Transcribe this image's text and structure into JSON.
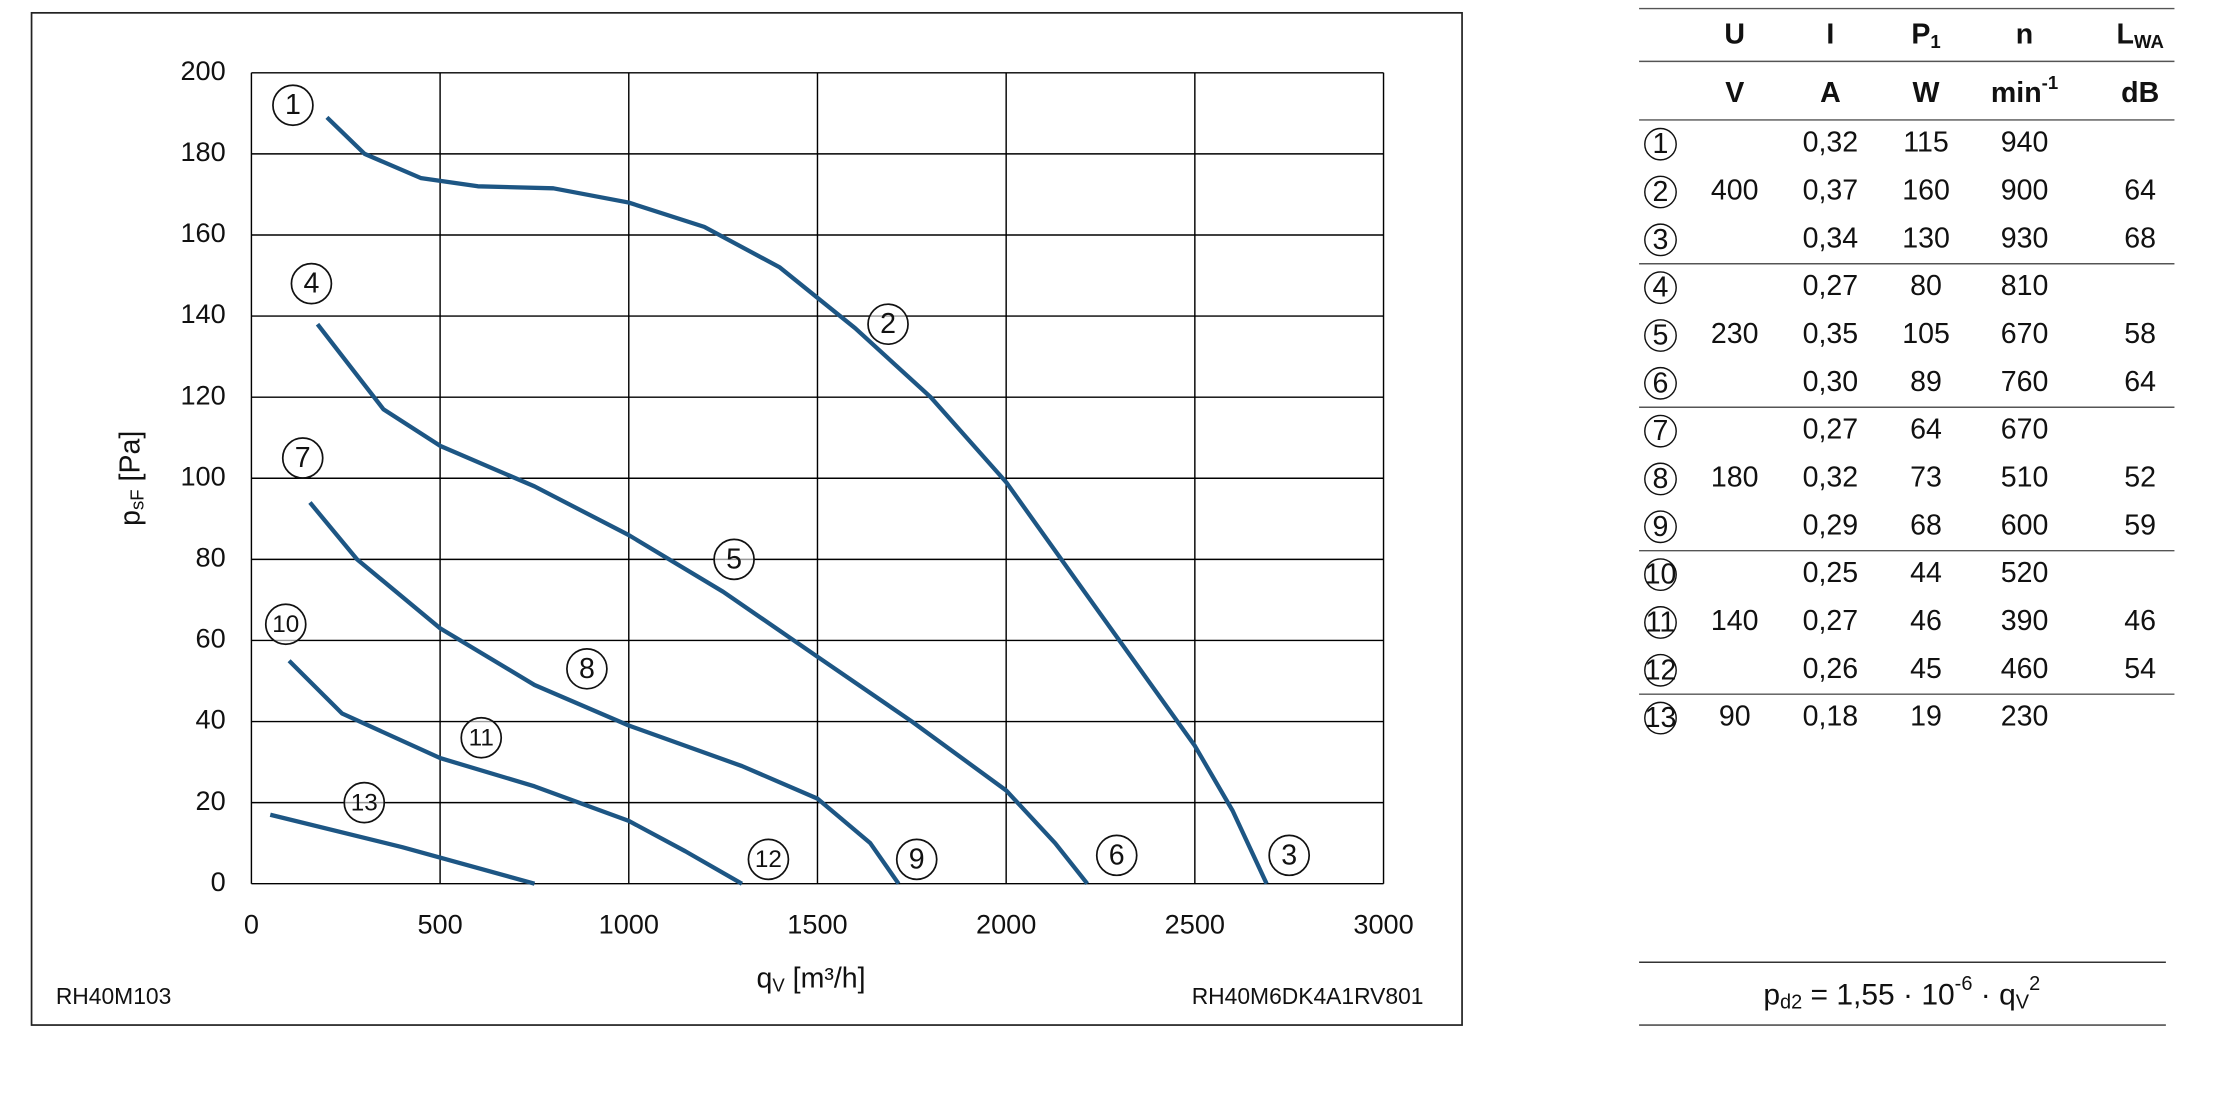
{
  "chart_data": {
    "type": "line",
    "xlabel": [
      "q",
      "V",
      " [m³/h]"
    ],
    "ylabel": [
      "p",
      "sF",
      " [Pa]"
    ],
    "xlim": [
      0,
      3000
    ],
    "ylim": [
      0,
      200
    ],
    "xticks": [
      0,
      500,
      1000,
      1500,
      2000,
      2500,
      3000
    ],
    "yticks": [
      0,
      20,
      40,
      60,
      80,
      100,
      120,
      140,
      160,
      180,
      200
    ],
    "grid": true,
    "series": [
      {
        "color": "#1d5684",
        "x": [
          200,
          300,
          450,
          600,
          800,
          1000,
          1200,
          1400,
          1600,
          1800,
          2000,
          2200,
          2400,
          2500,
          2600,
          2690
        ],
        "values": [
          189,
          180,
          174,
          172,
          171.5,
          168,
          162,
          152,
          137,
          120,
          99,
          73,
          47,
          34,
          18,
          0
        ]
      },
      {
        "color": "#1d5684",
        "x": [
          175,
          350,
          500,
          750,
          1000,
          1250,
          1500,
          1750,
          2000,
          2130,
          2215
        ],
        "values": [
          138,
          117,
          108,
          98,
          86,
          72,
          56,
          40,
          23,
          10,
          0
        ]
      },
      {
        "color": "#1d5684",
        "x": [
          155,
          280,
          500,
          750,
          1000,
          1300,
          1500,
          1640,
          1715
        ],
        "values": [
          94,
          80,
          63,
          49,
          39,
          29,
          21,
          10,
          0
        ]
      },
      {
        "color": "#1d5684",
        "x": [
          100,
          240,
          500,
          750,
          1000,
          1150,
          1300
        ],
        "values": [
          55,
          42,
          31,
          24,
          15.5,
          8,
          0
        ]
      },
      {
        "color": "#1d5684",
        "x": [
          50,
          400,
          750
        ],
        "values": [
          17,
          9,
          0
        ]
      }
    ],
    "annotations": [
      {
        "text": "1",
        "x": 110,
        "y": 192
      },
      {
        "text": "2",
        "x": 1687,
        "y": 138
      },
      {
        "text": "3",
        "x": 2750,
        "y": 7
      },
      {
        "text": "4",
        "x": 159,
        "y": 148
      },
      {
        "text": "5",
        "x": 1279,
        "y": 80
      },
      {
        "text": "6",
        "x": 2293,
        "y": 7
      },
      {
        "text": "7",
        "x": 136,
        "y": 105
      },
      {
        "text": "8",
        "x": 889,
        "y": 53
      },
      {
        "text": "9",
        "x": 1763,
        "y": 6
      },
      {
        "text": "10",
        "x": 91,
        "y": 64
      },
      {
        "text": "11",
        "x": 609,
        "y": 36
      },
      {
        "text": "12",
        "x": 1370,
        "y": 6
      },
      {
        "text": "13",
        "x": 299,
        "y": 20
      }
    ],
    "footer_left": "RH40M103",
    "footer_right": "RH40M6DK4A1RV801"
  },
  "table": {
    "header": [
      [
        "U"
      ],
      [
        "I"
      ],
      [
        "P",
        "1"
      ],
      [
        "n"
      ],
      [
        "L",
        "WA"
      ]
    ],
    "units": [
      [
        "V"
      ],
      [
        "A"
      ],
      [
        "W"
      ],
      [
        "min",
        "-1"
      ],
      [
        "dB"
      ]
    ],
    "groups": [
      {
        "U": "400",
        "rows": [
          {
            "id": "1",
            "I": "0,32",
            "P1": "115",
            "n": "940"
          },
          {
            "id": "2",
            "I": "0,37",
            "P1": "160",
            "n": "900",
            "LWA": "64"
          },
          {
            "id": "3",
            "I": "0,34",
            "P1": "130",
            "n": "930",
            "LWA": "68"
          }
        ]
      },
      {
        "U": "230",
        "rows": [
          {
            "id": "4",
            "I": "0,27",
            "P1": "80",
            "n": "810"
          },
          {
            "id": "5",
            "I": "0,35",
            "P1": "105",
            "n": "670",
            "LWA": "58"
          },
          {
            "id": "6",
            "I": "0,30",
            "P1": "89",
            "n": "760",
            "LWA": "64"
          }
        ]
      },
      {
        "U": "180",
        "rows": [
          {
            "id": "7",
            "I": "0,27",
            "P1": "64",
            "n": "670"
          },
          {
            "id": "8",
            "I": "0,32",
            "P1": "73",
            "n": "510",
            "LWA": "52"
          },
          {
            "id": "9",
            "I": "0,29",
            "P1": "68",
            "n": "600",
            "LWA": "59"
          }
        ]
      },
      {
        "U": "140",
        "rows": [
          {
            "id": "10",
            "I": "0,25",
            "P1": "44",
            "n": "520"
          },
          {
            "id": "11",
            "I": "0,27",
            "P1": "46",
            "n": "390",
            "LWA": "46"
          },
          {
            "id": "12",
            "I": "0,26",
            "P1": "45",
            "n": "460",
            "LWA": "54"
          }
        ]
      },
      {
        "U": "90",
        "rows": [
          {
            "id": "13",
            "I": "0,18",
            "P1": "19",
            "n": "230"
          }
        ]
      }
    ]
  },
  "formula": [
    "p",
    "d2",
    " = 1,55 · 10",
    "-6",
    " · q",
    "V",
    "2"
  ]
}
